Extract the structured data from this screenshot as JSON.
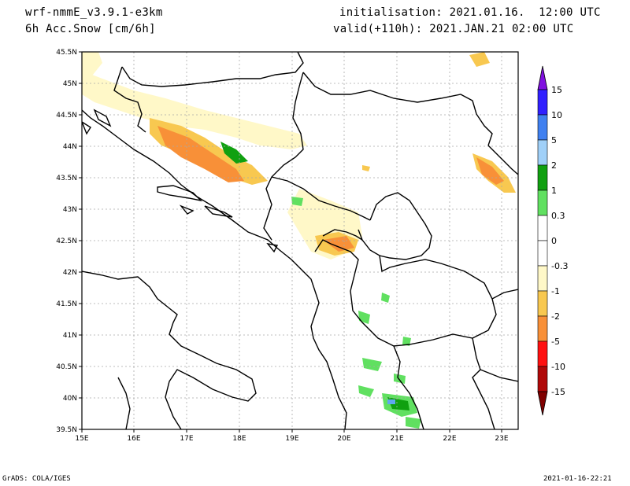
{
  "header": {
    "model": "wrf-nmmE_v3.9.1-e3km",
    "field": "6h Acc.Snow [cm/6h]",
    "init": "initialisation: 2021.01.16.  12:00 UTC",
    "valid": "valid(+110h): 2021.JAN.21 02:00 UTC"
  },
  "map": {
    "lat_ticks": [
      "45.5N",
      "45N",
      "44.5N",
      "44N",
      "43.5N",
      "43N",
      "42.5N",
      "42N",
      "41.5N",
      "41N",
      "40.5N",
      "40N",
      "39.5N"
    ],
    "lon_ticks": [
      "15E",
      "16E",
      "17E",
      "18E",
      "19E",
      "20E",
      "21E",
      "22E",
      "23E"
    ]
  },
  "colorbar": {
    "labels": [
      "15",
      "10",
      "5",
      "2",
      "1",
      "0.3",
      "0",
      "-0.3",
      "-1",
      "-2",
      "-5",
      "-10",
      "-15"
    ],
    "colors": [
      "#3320ff",
      "#2060f0",
      "#60a8f0",
      "#a0d0f8",
      "#10a010",
      "#60e060",
      "#ffffff",
      "#ffffff",
      "#fff8c8",
      "#f8c850",
      "#f89038",
      "#ff1010",
      "#c81010",
      "#a00808",
      "#7800a0",
      "#800000"
    ]
  },
  "footer": {
    "left": "GrADS: COLA/IGES",
    "right": "2021-01-16-22:21"
  }
}
